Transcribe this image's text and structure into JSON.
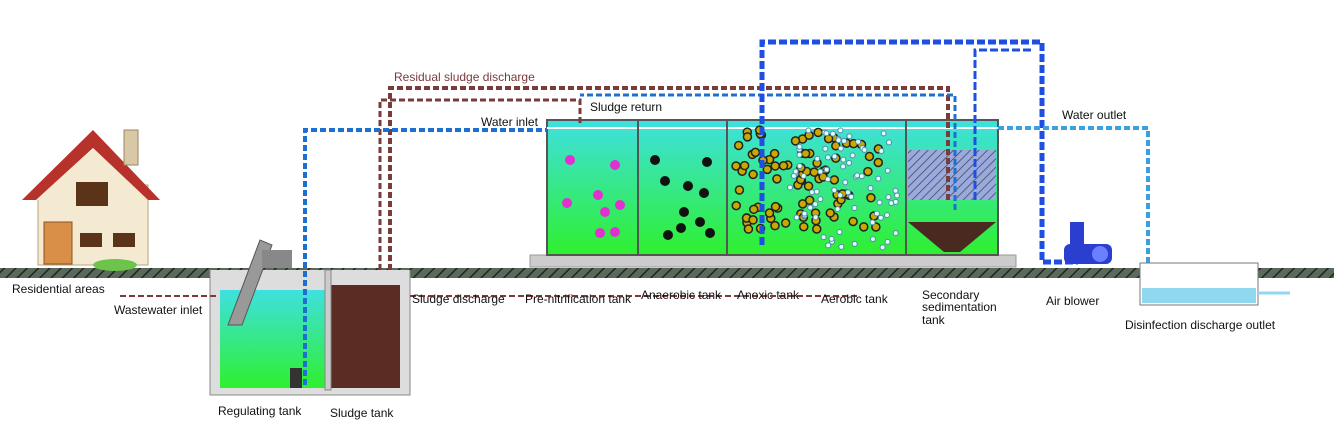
{
  "labels": {
    "residual_sludge_discharge": "Residual sludge discharge",
    "sludge_return": "Sludge return",
    "water_inlet": "Water inlet",
    "water_outlet": "Water outlet",
    "residential_areas": "Residential areas",
    "wastewater_inlet": "Wastewater inlet",
    "sludge_discharge": "Sludge discharge",
    "pre_nitrification_tank": "Pre-nitrification tank",
    "anaerobic_tank": "Anaerobic tank",
    "anoxic_tank": "Anoxic tank",
    "aerobic_tank": "Aerobic tank",
    "secondary_sedimentation_tank": [
      "Secondary",
      "sedimentation",
      "tank"
    ],
    "air_blower": "Air blower",
    "disinfection_discharge_outlet": "Disinfection discharge outlet",
    "regulating_tank": "Regulating tank",
    "sludge_tank": "Sludge tank"
  }
}
